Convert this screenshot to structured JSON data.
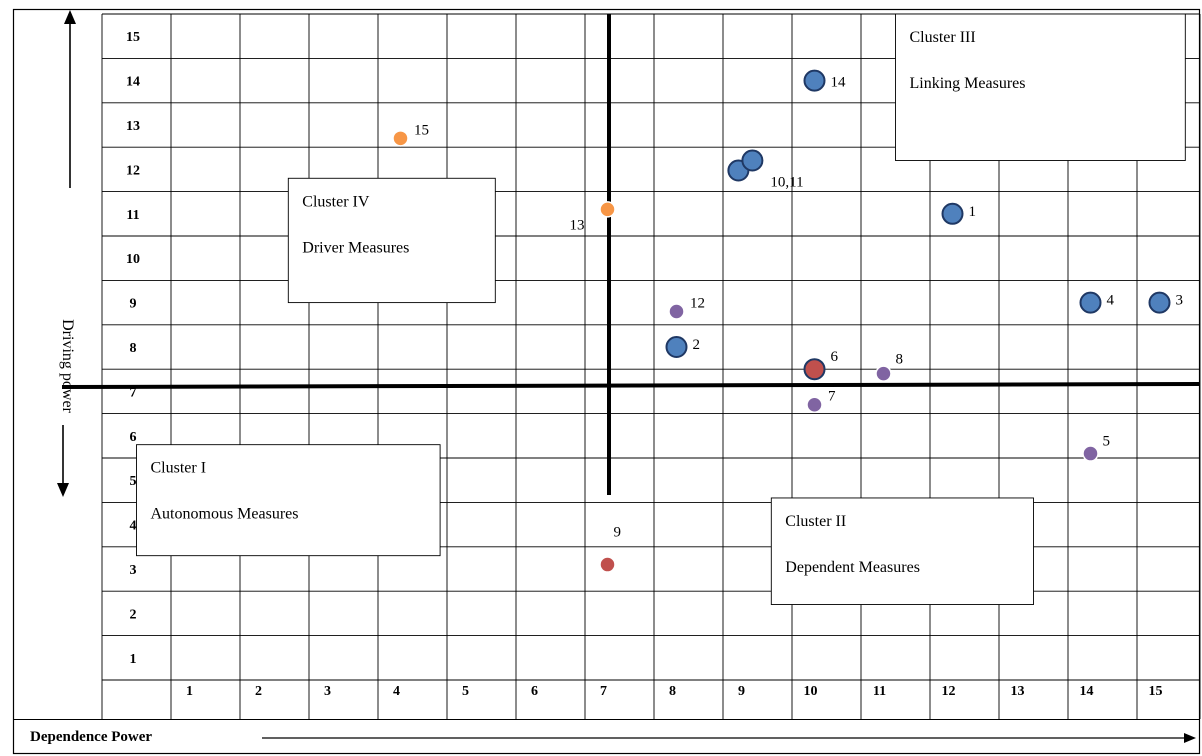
{
  "chart_data": {
    "type": "scatter",
    "xlabel": "Dependence Power",
    "ylabel": "Driving power",
    "x_ticks": [
      "1",
      "2",
      "3",
      "4",
      "5",
      "6",
      "7",
      "8",
      "9",
      "10",
      "11",
      "12",
      "13",
      "14",
      "15"
    ],
    "y_ticks": [
      "1",
      "2",
      "3",
      "4",
      "5",
      "6",
      "7",
      "8",
      "9",
      "10",
      "11",
      "12",
      "13",
      "14",
      "15"
    ],
    "xlim": [
      0,
      15
    ],
    "ylim": [
      0,
      15
    ],
    "grid": true,
    "divider_lines": {
      "vertical_x": 7.2,
      "horizontal_y": 6.9
    },
    "clusters": [
      {
        "name": "Cluster I",
        "label": "Autonomous Measures"
      },
      {
        "name": "Cluster II",
        "label": "Dependent Measures"
      },
      {
        "name": "Cluster III",
        "label": "Linking Measures"
      },
      {
        "name": "Cluster IV",
        "label": "Driver Measures"
      }
    ],
    "points": [
      {
        "label": "1",
        "x": 12.0,
        "y": 11.0,
        "color": "#4f81bd",
        "large": true
      },
      {
        "label": "2",
        "x": 8.0,
        "y": 8.0,
        "color": "#4f81bd",
        "large": true
      },
      {
        "label": "3",
        "x": 15.0,
        "y": 9.0,
        "color": "#4f81bd",
        "large": true
      },
      {
        "label": "4",
        "x": 14.0,
        "y": 9.0,
        "color": "#4f81bd",
        "large": true
      },
      {
        "label": "5",
        "x": 14.0,
        "y": 5.6,
        "color": "#8064a2",
        "large": false
      },
      {
        "label": "6",
        "x": 10.0,
        "y": 7.5,
        "color": "#c0504d",
        "large": true
      },
      {
        "label": "7",
        "x": 10.0,
        "y": 6.7,
        "color": "#8064a2",
        "large": false
      },
      {
        "label": "8",
        "x": 11.0,
        "y": 7.4,
        "color": "#8064a2",
        "large": false
      },
      {
        "label": "9",
        "x": 7.0,
        "y": 3.1,
        "color": "#c0504d",
        "large": false
      },
      {
        "label": "10,11",
        "x": 9.1,
        "y": 12.2,
        "color": "#4f81bd",
        "large": true
      },
      {
        "label": "12",
        "x": 8.0,
        "y": 8.8,
        "color": "#8064a2",
        "large": false
      },
      {
        "label": "13",
        "x": 7.0,
        "y": 11.1,
        "color": "#f79646",
        "large": false
      },
      {
        "label": "14",
        "x": 10.0,
        "y": 14.0,
        "color": "#4f81bd",
        "large": true
      },
      {
        "label": "15",
        "x": 4.0,
        "y": 12.7,
        "color": "#f79646",
        "large": false
      }
    ]
  }
}
